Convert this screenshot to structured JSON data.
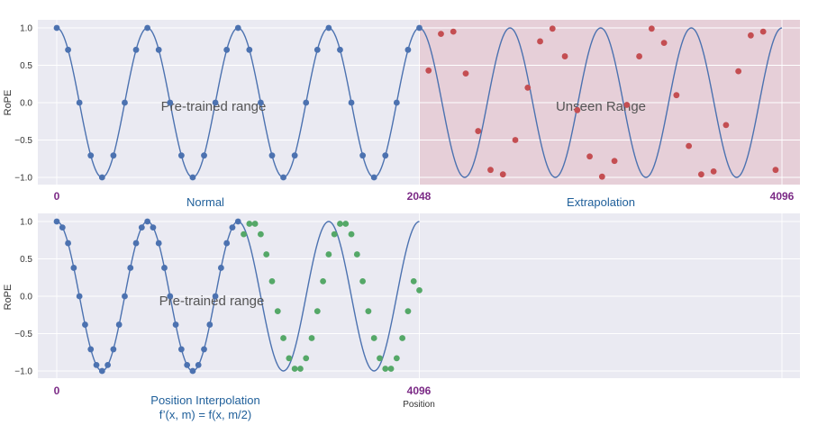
{
  "chart_data": [
    {
      "type": "line",
      "ylabel": "RoPE",
      "xlim": [
        0,
        4096
      ],
      "ylim": [
        -1.0,
        1.0
      ],
      "yticks": [
        1.0,
        0.5,
        0.0,
        -0.5,
        -1.0
      ],
      "ytick_labels": [
        "1.0",
        "0.5",
        "0.0",
        "−0.5",
        "−1.0"
      ],
      "grid": true,
      "curve": {
        "function": "cos",
        "period": 512,
        "x_range": [
          0,
          4096
        ]
      },
      "regions": [
        {
          "label": "Pre-trained range",
          "x_range": [
            0,
            2048
          ],
          "color": "#e8e8f1"
        },
        {
          "label": "Unseen Range",
          "x_range": [
            2048,
            4096
          ],
          "color": "#e6cfd8"
        }
      ],
      "position_labels": [
        "0",
        "2048",
        "4096"
      ],
      "captions": [
        "Normal",
        "Extrapolation"
      ],
      "series": [
        {
          "color": "#4c72b0",
          "x": [
            0,
            64,
            128,
            192,
            256,
            320,
            384,
            448,
            512,
            576,
            640,
            704,
            768,
            832,
            896,
            960,
            1024,
            1088,
            1152,
            1216,
            1280,
            1344,
            1408,
            1472,
            1536,
            1600,
            1664,
            1728,
            1792,
            1856,
            1920,
            1984,
            2048
          ],
          "y": [
            1.0,
            0.707,
            0.0,
            -0.707,
            -1.0,
            -0.707,
            0.0,
            0.707,
            1.0,
            0.707,
            0.0,
            -0.707,
            -1.0,
            -0.707,
            0.0,
            0.707,
            1.0,
            0.707,
            0.0,
            -0.707,
            -1.0,
            -0.707,
            0.0,
            0.707,
            1.0,
            0.707,
            0.0,
            -0.707,
            -1.0,
            -0.707,
            0.0,
            0.707,
            1.0
          ]
        },
        {
          "color": "#c44e52",
          "x": [
            2100,
            2170,
            2240,
            2310,
            2380,
            2450,
            2520,
            2590,
            2660,
            2730,
            2800,
            2870,
            2940,
            3010,
            3080,
            3150,
            3220,
            3290,
            3360,
            3430,
            3500,
            3570,
            3640,
            3710,
            3780,
            3850,
            3920,
            3990,
            4060
          ],
          "y": [
            0.43,
            0.92,
            0.95,
            0.39,
            -0.38,
            -0.9,
            -0.96,
            -0.5,
            0.2,
            0.82,
            0.99,
            0.62,
            -0.1,
            -0.72,
            -0.99,
            -0.78,
            -0.03,
            0.62,
            0.99,
            0.8,
            0.1,
            -0.58,
            -0.96,
            -0.92,
            -0.3,
            0.42,
            0.9,
            0.95,
            -0.9
          ]
        }
      ]
    },
    {
      "type": "line",
      "ylabel": "RoPE",
      "xlabel": "Position",
      "xlim": [
        0,
        4096
      ],
      "ylim": [
        -1.0,
        1.0
      ],
      "yticks": [
        1.0,
        0.5,
        0.0,
        -0.5,
        -1.0
      ],
      "ytick_labels": [
        "1.0",
        "0.5",
        "0.0",
        "−0.5",
        "−1.0"
      ],
      "grid": true,
      "curve": {
        "function": "cos",
        "period": 512,
        "x_range": [
          0,
          2048
        ]
      },
      "regions": [
        {
          "label": "Pre-trained range",
          "x_range": [
            0,
            2048
          ],
          "color": "#e8e8f1"
        }
      ],
      "position_labels": [
        "0",
        "4096"
      ],
      "captions": [
        "Position Interpolation",
        "f’(x, m) = f(x, m/2)"
      ],
      "series": [
        {
          "color": "#4c72b0",
          "x": [
            0,
            32,
            64,
            96,
            128,
            160,
            192,
            224,
            256,
            288,
            320,
            352,
            384,
            416,
            448,
            480,
            512,
            544,
            576,
            608,
            640,
            672,
            704,
            736,
            768,
            800,
            832,
            864,
            896,
            928,
            960,
            992,
            1024
          ],
          "y": [
            1.0,
            0.92,
            0.71,
            0.38,
            0.0,
            -0.38,
            -0.71,
            -0.92,
            -1.0,
            -0.92,
            -0.71,
            -0.38,
            0.0,
            0.38,
            0.71,
            0.92,
            1.0,
            0.92,
            0.71,
            0.38,
            0.0,
            -0.38,
            -0.71,
            -0.92,
            -1.0,
            -0.92,
            -0.71,
            -0.38,
            0.0,
            0.38,
            0.71,
            0.92,
            1.0
          ]
        },
        {
          "color": "#55a868",
          "x": [
            1056,
            1088,
            1120,
            1152,
            1184,
            1216,
            1248,
            1280,
            1312,
            1344,
            1376,
            1408,
            1440,
            1472,
            1504,
            1536,
            1568,
            1600,
            1632,
            1664,
            1696,
            1728,
            1760,
            1792,
            1824,
            1856,
            1888,
            1920,
            1952,
            1984,
            2016,
            2048
          ],
          "y": [
            0.83,
            0.97,
            0.97,
            0.83,
            0.56,
            0.2,
            -0.2,
            -0.56,
            -0.83,
            -0.97,
            -0.97,
            -0.83,
            -0.56,
            -0.2,
            0.2,
            0.56,
            0.83,
            0.97,
            0.97,
            0.83,
            0.56,
            0.2,
            -0.2,
            -0.56,
            -0.83,
            -0.97,
            -0.97,
            -0.83,
            -0.56,
            -0.2,
            0.2,
            0.08
          ]
        }
      ]
    }
  ]
}
